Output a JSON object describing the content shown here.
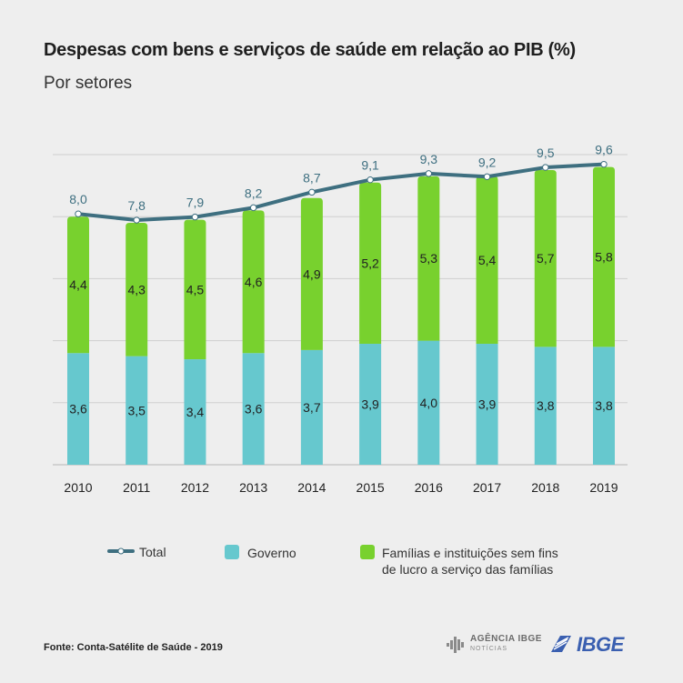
{
  "header": {
    "title": "Despesas com bens e serviços de saúde em relação ao PIB (%)",
    "subtitle": "Por setores"
  },
  "chart_data": {
    "type": "bar",
    "stacked": true,
    "categories": [
      "2010",
      "2011",
      "2012",
      "2013",
      "2014",
      "2015",
      "2016",
      "2017",
      "2018",
      "2019"
    ],
    "series": [
      {
        "name": "Governo",
        "values": [
          3.6,
          3.5,
          3.4,
          3.6,
          3.7,
          3.9,
          4.0,
          3.9,
          3.8,
          3.8
        ],
        "labels": [
          "3,6",
          "3,5",
          "3,4",
          "3,6",
          "3,7",
          "3,9",
          "4,0",
          "3,9",
          "3,8",
          "3,8"
        ],
        "color": "#66c8ce"
      },
      {
        "name": "Famílias e instituições sem fins de lucro a serviço das famílias",
        "values": [
          4.4,
          4.3,
          4.5,
          4.6,
          4.9,
          5.2,
          5.3,
          5.4,
          5.7,
          5.8
        ],
        "labels": [
          "4,4",
          "4,3",
          "4,5",
          "4,6",
          "4,9",
          "5,2",
          "5,3",
          "5,4",
          "5,7",
          "5,8"
        ],
        "color": "#78d12e"
      }
    ],
    "total": {
      "name": "Total",
      "values": [
        8.0,
        7.8,
        7.9,
        8.2,
        8.7,
        9.1,
        9.3,
        9.2,
        9.5,
        9.6
      ],
      "labels": [
        "8,0",
        "7,8",
        "7,9",
        "8,2",
        "8,7",
        "9,1",
        "9,3",
        "9,2",
        "9,5",
        "9,6"
      ],
      "color": "#3e6f80"
    },
    "ylim": [
      0,
      10
    ],
    "grid": true,
    "legend_position": "bottom"
  },
  "legend": {
    "total": "Total",
    "governo": "Governo",
    "familias_line1": "Famílias e instituições sem fins",
    "familias_line2": "de lucro a serviço das famílias"
  },
  "footer": {
    "source": "Fonte: Conta-Satélite de Saúde - 2019",
    "agencia_top": "AGÊNCIA IBGE",
    "agencia_bottom": "NOTÍCIAS",
    "ibge": "IBGE"
  }
}
